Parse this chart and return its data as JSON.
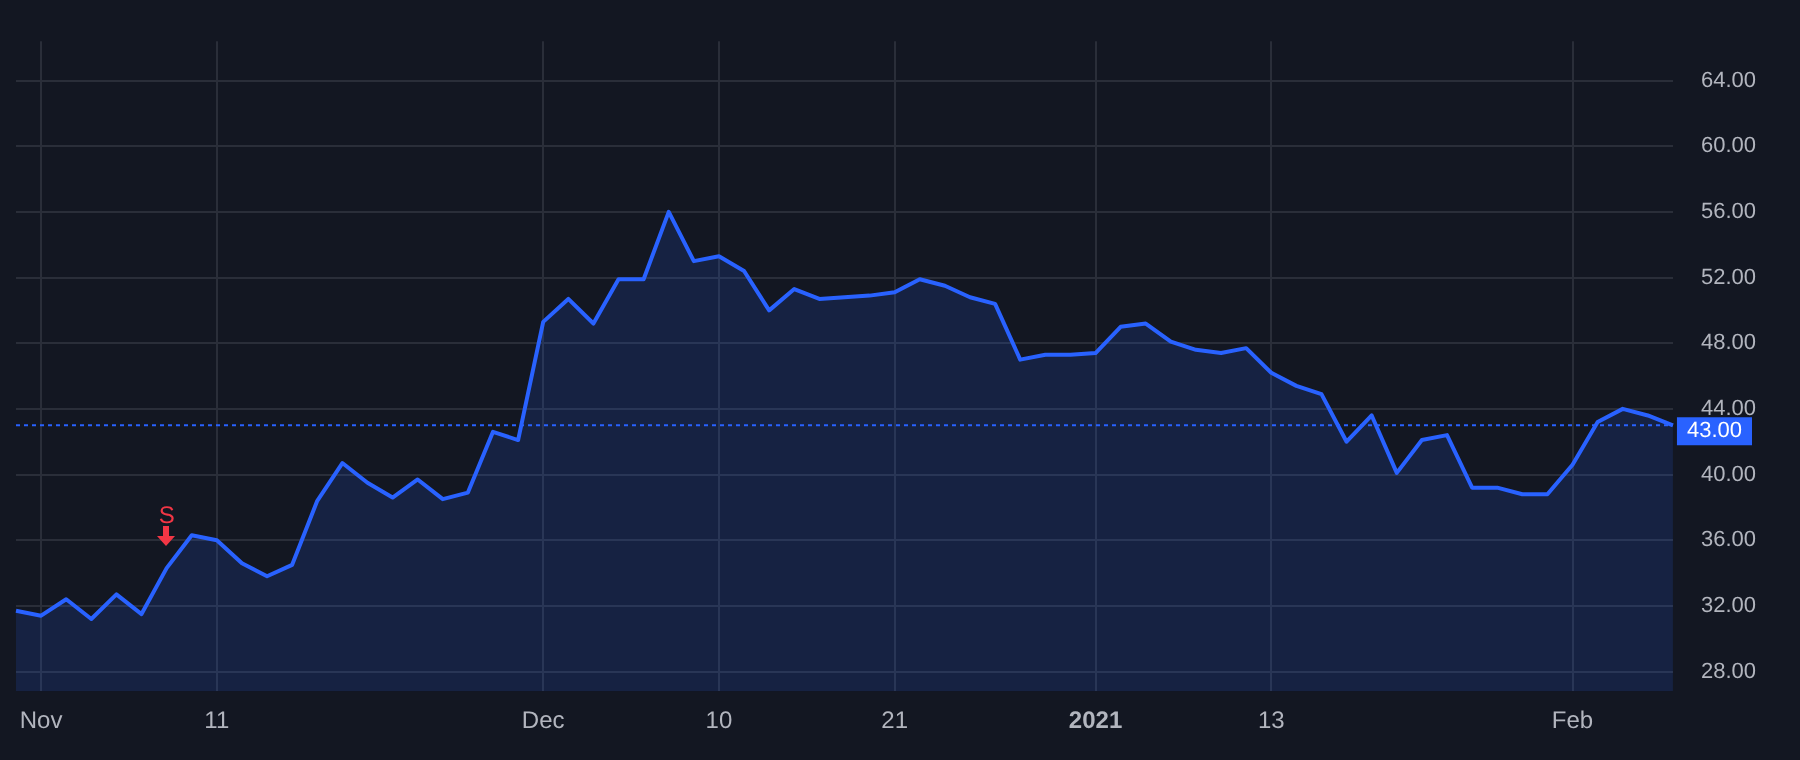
{
  "chart_data": {
    "type": "area",
    "categories": [
      null,
      "Nov",
      null,
      null,
      null,
      null,
      null,
      null,
      "11",
      null,
      null,
      null,
      null,
      null,
      null,
      null,
      null,
      null,
      null,
      null,
      null,
      "Dec",
      null,
      null,
      null,
      null,
      null,
      null,
      "10",
      null,
      null,
      null,
      null,
      null,
      null,
      "21",
      null,
      null,
      null,
      null,
      null,
      null,
      null,
      "2021",
      null,
      null,
      null,
      null,
      null,
      null,
      "13",
      null,
      null,
      null,
      null,
      null,
      null,
      null,
      null,
      null,
      null,
      null,
      "Feb",
      null,
      null,
      null,
      null
    ],
    "series": [
      {
        "color": "#2962ff",
        "values": [
          31.7,
          31.4,
          32.4,
          31.2,
          32.7,
          31.5,
          34.3,
          36.3,
          36.0,
          34.6,
          33.8,
          34.5,
          38.4,
          40.7,
          39.5,
          38.6,
          39.7,
          38.5,
          38.9,
          42.6,
          42.1,
          49.3,
          50.7,
          49.2,
          51.9,
          51.9,
          56.0,
          53.0,
          53.3,
          52.4,
          50.0,
          51.3,
          50.7,
          50.8,
          50.9,
          51.1,
          51.9,
          51.5,
          50.8,
          50.4,
          47.0,
          47.3,
          47.3,
          47.4,
          49.0,
          49.2,
          48.1,
          47.6,
          47.4,
          47.7,
          46.2,
          45.4,
          44.9,
          42.0,
          43.6,
          40.1,
          42.1,
          42.4,
          39.2,
          39.2,
          38.8,
          38.8,
          40.6,
          43.2,
          44.0,
          43.6,
          43.0
        ]
      }
    ],
    "ylim": [
      26.8,
      66.4
    ],
    "yticks": [
      {
        "value": 28,
        "label": "28.00"
      },
      {
        "value": 32,
        "label": "32.00"
      },
      {
        "value": 36,
        "label": "36.00"
      },
      {
        "value": 40,
        "label": "40.00"
      },
      {
        "value": 44,
        "label": "44.00"
      },
      {
        "value": 48,
        "label": "48.00"
      },
      {
        "value": 52,
        "label": "52.00"
      },
      {
        "value": 56,
        "label": "56.00"
      },
      {
        "value": 60,
        "label": "60.00"
      },
      {
        "value": 64,
        "label": "64.00"
      }
    ],
    "ref_lines": [
      {
        "axis": "y",
        "value": 43.0,
        "label": "43.00",
        "color": "#2962ff",
        "line_style": "dotted"
      }
    ],
    "annotations": [
      {
        "text": "S",
        "y": 34.3
      }
    ],
    "grid": true,
    "legend": false,
    "marker": "none",
    "line_style": "solid"
  }
}
